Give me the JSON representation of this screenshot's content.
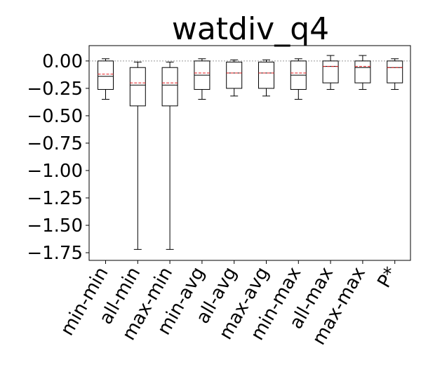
{
  "chart_data": {
    "type": "box",
    "title": "watdiv_q4",
    "xlabel": "",
    "ylabel": "",
    "ylim": [
      -1.82,
      0.14
    ],
    "yticks": [
      0.0,
      -0.25,
      -0.5,
      -0.75,
      -1.0,
      -1.25,
      -1.5,
      -1.75
    ],
    "ytick_labels": [
      "0.00",
      "−0.25",
      "−0.50",
      "−0.75",
      "−1.00",
      "−1.25",
      "−1.50",
      "−1.75"
    ],
    "reference_line": 0.0,
    "grid": false,
    "colors": {
      "box": "#000000",
      "median": "#000000",
      "mean": "#e41a1c",
      "reference": "#999999"
    },
    "categories": [
      "min-min",
      "all-min",
      "max-min",
      "min-avg",
      "all-avg",
      "max-avg",
      "min-max",
      "all-max",
      "max-max",
      "P*"
    ],
    "boxes": [
      {
        "whisker_low": -0.35,
        "q1": -0.26,
        "median": -0.14,
        "mean": -0.12,
        "q3": 0.0,
        "whisker_high": 0.02
      },
      {
        "whisker_low": -1.72,
        "q1": -0.41,
        "median": -0.22,
        "mean": -0.2,
        "q3": -0.06,
        "whisker_high": -0.01
      },
      {
        "whisker_low": -1.72,
        "q1": -0.41,
        "median": -0.22,
        "mean": -0.2,
        "q3": -0.06,
        "whisker_high": -0.01
      },
      {
        "whisker_low": -0.35,
        "q1": -0.26,
        "median": -0.13,
        "mean": -0.11,
        "q3": 0.0,
        "whisker_high": 0.02
      },
      {
        "whisker_low": -0.32,
        "q1": -0.25,
        "median": -0.11,
        "mean": -0.11,
        "q3": -0.01,
        "whisker_high": 0.01
      },
      {
        "whisker_low": -0.32,
        "q1": -0.25,
        "median": -0.11,
        "mean": -0.11,
        "q3": -0.01,
        "whisker_high": 0.01
      },
      {
        "whisker_low": -0.35,
        "q1": -0.26,
        "median": -0.13,
        "mean": -0.11,
        "q3": 0.0,
        "whisker_high": 0.02
      },
      {
        "whisker_low": -0.26,
        "q1": -0.2,
        "median": -0.05,
        "mean": -0.05,
        "q3": 0.0,
        "whisker_high": 0.05
      },
      {
        "whisker_low": -0.26,
        "q1": -0.2,
        "median": -0.06,
        "mean": -0.05,
        "q3": 0.0,
        "whisker_high": 0.05
      },
      {
        "whisker_low": -0.26,
        "q1": -0.2,
        "median": -0.06,
        "mean": -0.06,
        "q3": 0.0,
        "whisker_high": 0.02
      }
    ]
  }
}
